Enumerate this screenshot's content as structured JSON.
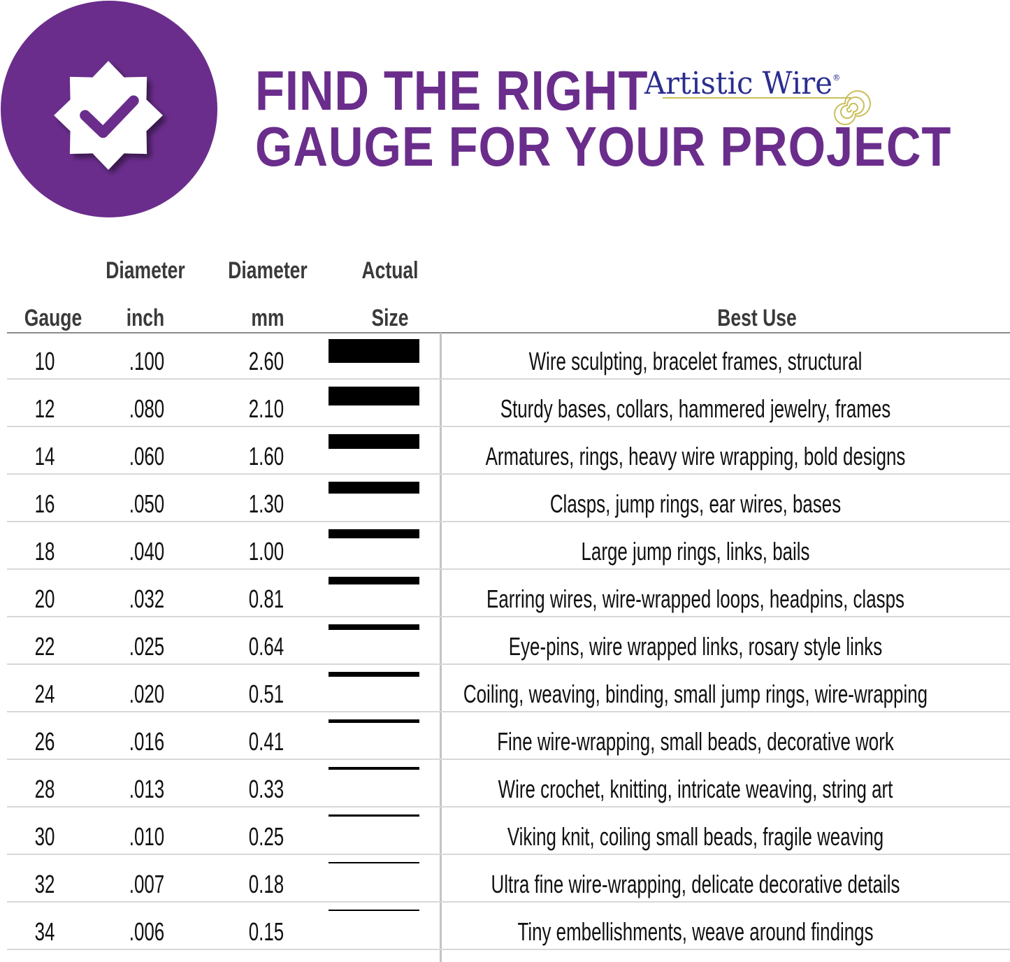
{
  "title": {
    "line1": "FIND THE RIGHT",
    "line2": "GAUGE FOR YOUR PROJECT"
  },
  "logo": {
    "text": "Artistic Wire",
    "mark": "®"
  },
  "colors": {
    "brand_purple": "#6a2d8c",
    "logo_blue": "#2a2d8f",
    "logo_gold": "#c9bf5a"
  },
  "icons": {
    "badge": "verified-badge-check-icon",
    "logo_spiral": "spiral-icon"
  },
  "table": {
    "headers": {
      "gauge": "Gauge",
      "inch_top": "Diameter",
      "inch_bottom": "inch",
      "mm_top": "Diameter",
      "mm_bottom": "mm",
      "size_top": "Actual",
      "size_bottom": "Size",
      "use": "Best Use"
    },
    "rows": [
      {
        "gauge": "10",
        "inch": ".100",
        "mm": "2.60",
        "use": "Wire sculpting, bracelet frames, structural"
      },
      {
        "gauge": "12",
        "inch": ".080",
        "mm": "2.10",
        "use": "Sturdy bases, collars, hammered jewelry, frames"
      },
      {
        "gauge": "14",
        "inch": ".060",
        "mm": "1.60",
        "use": "Armatures, rings, heavy wire wrapping, bold designs"
      },
      {
        "gauge": "16",
        "inch": ".050",
        "mm": "1.30",
        "use": "Clasps, jump rings, ear wires, bases"
      },
      {
        "gauge": "18",
        "inch": ".040",
        "mm": "1.00",
        "use": "Large jump rings, links, bails"
      },
      {
        "gauge": "20",
        "inch": ".032",
        "mm": "0.81",
        "use": "Earring wires, wire-wrapped loops, headpins, clasps"
      },
      {
        "gauge": "22",
        "inch": ".025",
        "mm": "0.64",
        "use": "Eye-pins, wire wrapped links, rosary style links"
      },
      {
        "gauge": "24",
        "inch": ".020",
        "mm": "0.51",
        "use": "Coiling, weaving, binding, small jump rings, wire-wrapping"
      },
      {
        "gauge": "26",
        "inch": ".016",
        "mm": "0.41",
        "use": "Fine wire-wrapping, small beads, decorative work"
      },
      {
        "gauge": "28",
        "inch": ".013",
        "mm": "0.33",
        "use": "Wire crochet, knitting, intricate weaving, string art"
      },
      {
        "gauge": "30",
        "inch": ".010",
        "mm": "0.25",
        "use": "Viking knit, coiling small beads, fragile weaving"
      },
      {
        "gauge": "32",
        "inch": ".007",
        "mm": "0.18",
        "use": "Ultra fine wire-wrapping, delicate decorative details"
      },
      {
        "gauge": "34",
        "inch": ".006",
        "mm": "0.15",
        "use": "Tiny embellishments, weave around findings"
      }
    ]
  }
}
